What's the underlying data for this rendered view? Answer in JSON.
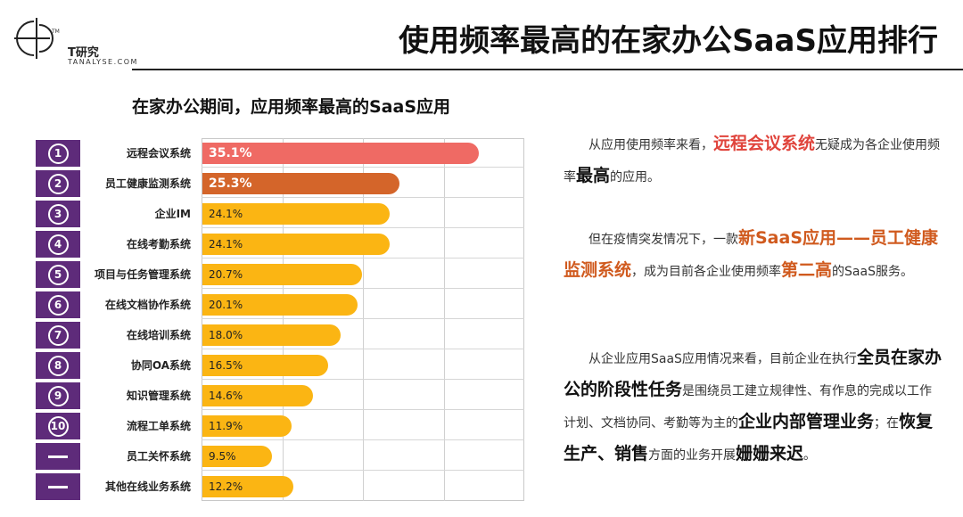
{
  "brand": {
    "tm": "TM",
    "name_cn": "T研究",
    "name_en": "TANALYSE.COM"
  },
  "title": "使用频率最高的在家办公SaaS应用排行",
  "chart_data": {
    "type": "bar",
    "orientation": "horizontal",
    "title": "在家办公期间，应用频率最高的SaaS应用",
    "xlim": [
      0,
      40
    ],
    "grid": true,
    "categories": [
      "远程会议系统",
      "员工健康监测系统",
      "企业IM",
      "在线考勤系统",
      "项目与任务管理系统",
      "在线文档协作系统",
      "在线培训系统",
      "协同OA系统",
      "知识管理系统",
      "流程工单系统",
      "员工关怀系统",
      "其他在线业务系统"
    ],
    "values": [
      35.1,
      25.3,
      24.1,
      24.1,
      20.7,
      20.1,
      18.0,
      16.5,
      14.6,
      11.9,
      9.5,
      12.2
    ],
    "value_labels": [
      "35.1%",
      "25.3%",
      "24.1%",
      "24.1%",
      "20.7%",
      "20.1%",
      "18.0%",
      "16.5%",
      "14.6%",
      "11.9%",
      "9.5%",
      "12.2%"
    ],
    "ranks": [
      "①",
      "②",
      "③",
      "④",
      "⑤",
      "⑥",
      "⑦",
      "⑧",
      "⑨",
      "⑩",
      "—",
      "—"
    ],
    "colors": {
      "first": "#ef6a64",
      "second": "#d4652a",
      "rest": "#fbb513",
      "rank_bg": "#5e2b7a"
    }
  },
  "paragraphs": [
    [
      {
        "t": "从应用使用频率来看，",
        "s": "n"
      },
      {
        "t": "远程会议系统",
        "s": "r"
      },
      {
        "t": "无疑成为各企业使用频率",
        "s": "n"
      },
      {
        "t": "最高",
        "s": "b"
      },
      {
        "t": "的应用。",
        "s": "n"
      }
    ],
    [
      {
        "t": "但在疫情突发情况下，一款",
        "s": "n"
      },
      {
        "t": "新SaaS应用——员工健康监测系统",
        "s": "o"
      },
      {
        "t": "，成为目前各企业使用频率",
        "s": "n"
      },
      {
        "t": "第二高",
        "s": "o"
      },
      {
        "t": "的SaaS服务。",
        "s": "n"
      }
    ],
    [
      {
        "t": "从企业应用SaaS应用情况来看，目前企业在执行",
        "s": "n"
      },
      {
        "t": "全员在家办公的阶段性任务",
        "s": "b"
      },
      {
        "t": "是围绕员工建立规律性、有作息的完成以工作计划、文档协同、考勤等为主的",
        "s": "n"
      },
      {
        "t": "企业内部管理业务",
        "s": "b"
      },
      {
        "t": "；在",
        "s": "n"
      },
      {
        "t": "恢复生产、销售",
        "s": "b"
      },
      {
        "t": "方面的业务开展",
        "s": "n"
      },
      {
        "t": "姗姗来迟",
        "s": "b"
      },
      {
        "t": "。",
        "s": "n"
      }
    ]
  ]
}
